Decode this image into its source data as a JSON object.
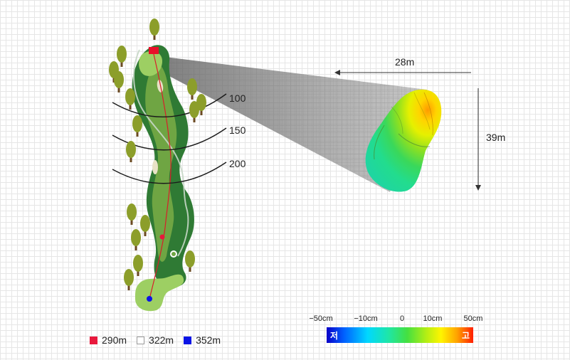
{
  "yardage_labels": [
    "100",
    "150",
    "200"
  ],
  "green_size": {
    "width": "28m",
    "depth": "39m"
  },
  "legend": [
    {
      "color": "#e8183c",
      "label": "290m"
    },
    {
      "color": "#ffffff",
      "label": "322m"
    },
    {
      "color": "#0a14e6",
      "label": "352m"
    }
  ],
  "scale": {
    "ticks": [
      "−50cm",
      "−10cm",
      "0",
      "10cm",
      "50cm"
    ],
    "low_label": "저",
    "high_label": "고"
  },
  "colors": {
    "rough": "#2f7a34",
    "fairway": "#6fa543",
    "green_light": "#9dcf63",
    "pin_flag": "#e8102a"
  }
}
